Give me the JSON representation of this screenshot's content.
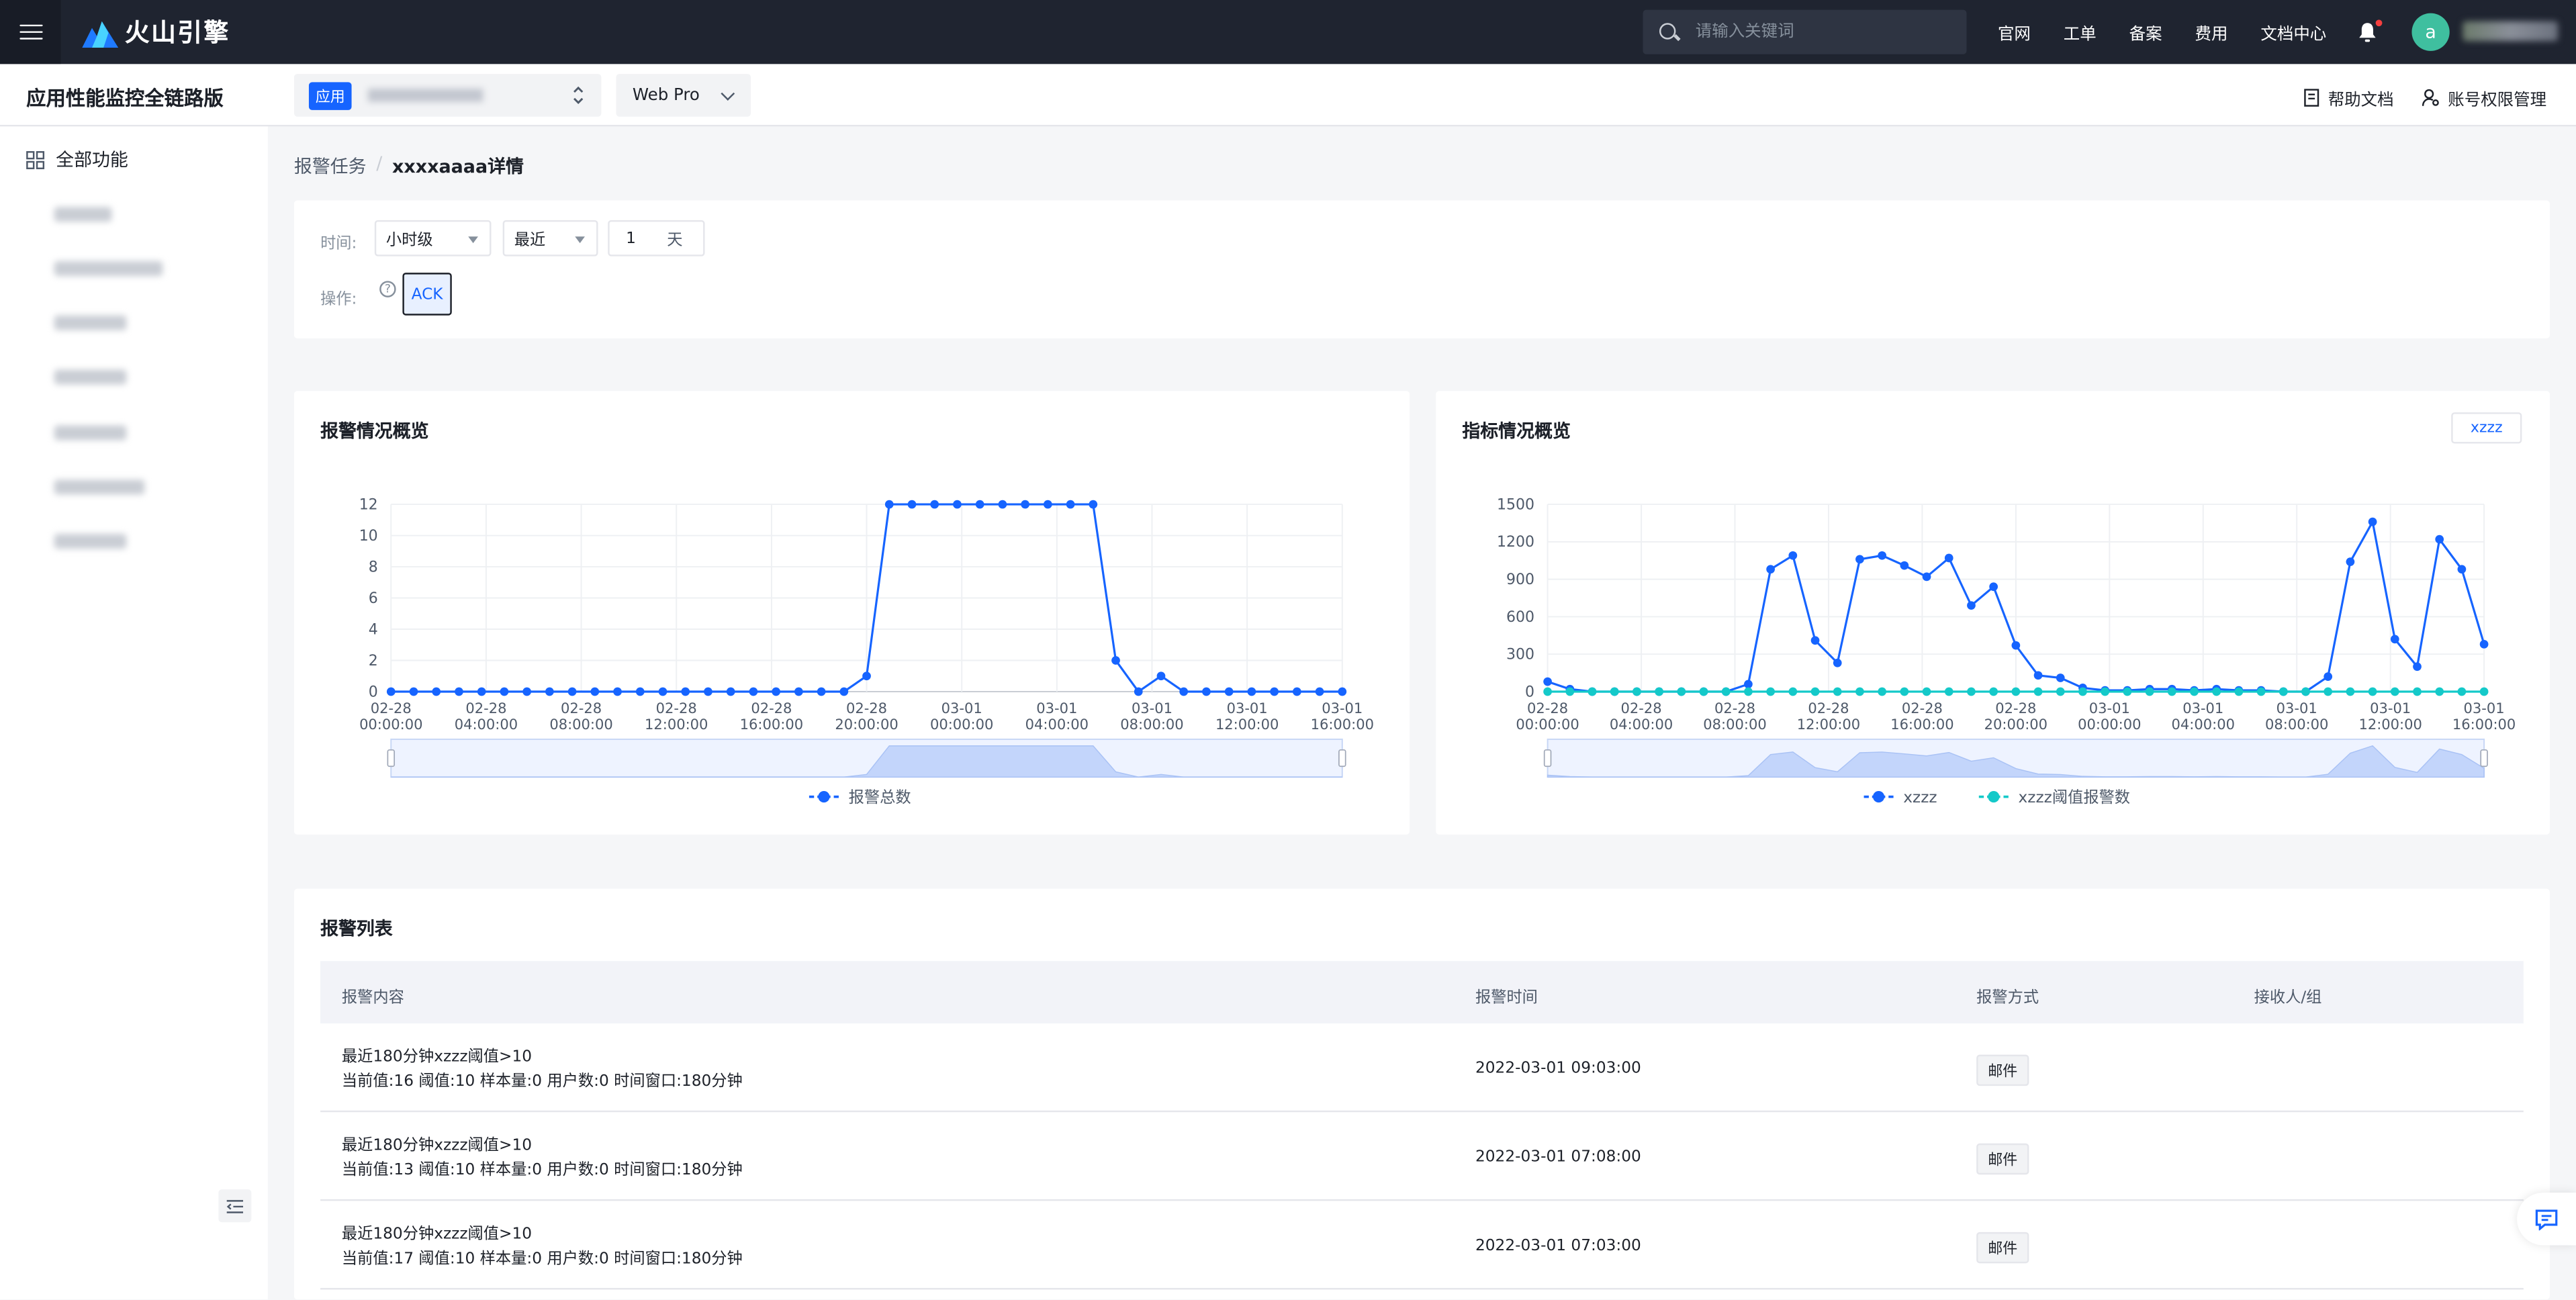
{
  "topnav": {
    "brand": "火山引擎",
    "search_placeholder": "请输入关键词",
    "links": [
      "官网",
      "工单",
      "备案",
      "费用",
      "文档中心"
    ],
    "avatar_letter": "a"
  },
  "subheader": {
    "product_title": "应用性能监控全链路版",
    "app_tag": "应用",
    "env": "Web Pro",
    "help": "帮助文档",
    "permissions": "账号权限管理"
  },
  "sidebar": {
    "all_features": "全部功能"
  },
  "breadcrumb": {
    "parent": "报警任务",
    "separator": "/",
    "current": "xxxxaaaa详情"
  },
  "filters": {
    "time_label": "时间:",
    "granularity": "小时级",
    "range": "最近",
    "count": "1",
    "unit": "天",
    "action_label": "操作:",
    "help_mark": "?",
    "ack": "ACK"
  },
  "chart_left": {
    "title": "报警情况概览"
  },
  "chart_right": {
    "title": "指标情况概览",
    "metric_button": "xzzz"
  },
  "chart_data": [
    {
      "type": "line",
      "title": "报警情况概览",
      "x_ticks": [
        [
          "02-28",
          "00:00:00"
        ],
        [
          "02-28",
          "04:00:00"
        ],
        [
          "02-28",
          "08:00:00"
        ],
        [
          "02-28",
          "12:00:00"
        ],
        [
          "02-28",
          "16:00:00"
        ],
        [
          "02-28",
          "20:00:00"
        ],
        [
          "03-01",
          "00:00:00"
        ],
        [
          "03-01",
          "04:00:00"
        ],
        [
          "03-01",
          "08:00:00"
        ],
        [
          "03-01",
          "12:00:00"
        ],
        [
          "03-01",
          "16:00:00"
        ]
      ],
      "ylim": [
        0,
        12
      ],
      "y_ticks": [
        0,
        2,
        4,
        6,
        8,
        10,
        12
      ],
      "grid": true,
      "legend": "bottom",
      "series": [
        {
          "name": "报警总数",
          "color": "#1664ff",
          "values": [
            0,
            0,
            0,
            0,
            0,
            0,
            0,
            0,
            0,
            0,
            0,
            0,
            0,
            0,
            0,
            0,
            0,
            0,
            0,
            0,
            0,
            1,
            12,
            12,
            12,
            12,
            12,
            12,
            12,
            12,
            12,
            12,
            2,
            0,
            1,
            0,
            0,
            0,
            0,
            0,
            0,
            0,
            0
          ]
        }
      ]
    },
    {
      "type": "line",
      "title": "指标情况概览",
      "x_ticks": [
        [
          "02-28",
          "00:00:00"
        ],
        [
          "02-28",
          "04:00:00"
        ],
        [
          "02-28",
          "08:00:00"
        ],
        [
          "02-28",
          "12:00:00"
        ],
        [
          "02-28",
          "16:00:00"
        ],
        [
          "02-28",
          "20:00:00"
        ],
        [
          "03-01",
          "00:00:00"
        ],
        [
          "03-01",
          "04:00:00"
        ],
        [
          "03-01",
          "08:00:00"
        ],
        [
          "03-01",
          "12:00:00"
        ],
        [
          "03-01",
          "16:00:00"
        ]
      ],
      "ylim": [
        0,
        1500
      ],
      "y_ticks": [
        0,
        300,
        600,
        900,
        1200,
        1500
      ],
      "grid": true,
      "legend": "bottom",
      "series": [
        {
          "name": "xzzz",
          "color": "#1664ff",
          "values": [
            80,
            20,
            0,
            0,
            0,
            0,
            0,
            0,
            0,
            60,
            980,
            1090,
            410,
            230,
            1060,
            1090,
            1010,
            920,
            1070,
            690,
            840,
            370,
            130,
            110,
            30,
            10,
            10,
            20,
            20,
            10,
            20,
            10,
            10,
            0,
            0,
            120,
            1040,
            1360,
            420,
            200,
            1220,
            980,
            380
          ]
        },
        {
          "name": "xzzz阈值报警数",
          "color": "#14c9c9",
          "values": [
            0,
            0,
            0,
            0,
            0,
            0,
            0,
            0,
            0,
            0,
            0,
            0,
            0,
            0,
            0,
            0,
            0,
            0,
            0,
            0,
            0,
            0,
            0,
            0,
            0,
            0,
            0,
            0,
            0,
            0,
            0,
            0,
            0,
            0,
            0,
            0,
            0,
            0,
            0,
            0,
            0,
            0,
            0
          ]
        }
      ]
    }
  ],
  "alert_list": {
    "title": "报警列表",
    "columns": [
      "报警内容",
      "报警时间",
      "报警方式",
      "接收人/组"
    ],
    "rows": [
      {
        "line1": "最近180分钟xzzz阈值>10",
        "line2": "当前值:16 阈值:10 样本量:0 用户数:0 时间窗口:180分钟",
        "time": "2022-03-01 09:03:00",
        "way": "邮件"
      },
      {
        "line1": "最近180分钟xzzz阈值>10",
        "line2": "当前值:13 阈值:10 样本量:0 用户数:0 时间窗口:180分钟",
        "time": "2022-03-01 07:08:00",
        "way": "邮件"
      },
      {
        "line1": "最近180分钟xzzz阈值>10",
        "line2": "当前值:17 阈值:10 样本量:0 用户数:0 时间窗口:180分钟",
        "time": "2022-03-01 07:03:00",
        "way": "邮件"
      }
    ]
  }
}
